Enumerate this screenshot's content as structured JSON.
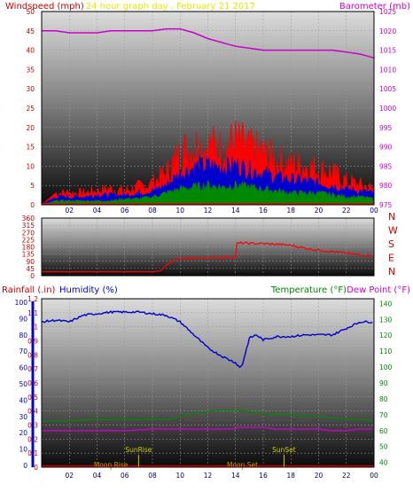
{
  "colors": {
    "wind_axis": "#cc0000",
    "barometer": "#cc00cc",
    "title": "#e6e600",
    "rain": "#cc0000",
    "humidity": "#0000cc",
    "temperature": "#008800",
    "dewpoint": "#cc00cc",
    "wind_gust": "#ff0000",
    "wind_avg": "#0000cc",
    "wind_low": "#008800",
    "moon": "#cc9900",
    "sun": "#cccc00"
  },
  "chart_data": [
    {
      "type": "line",
      "panel": "wind-barometer",
      "title": "24 hour graph day , February 21 2017",
      "ylabel": "Windspeed (mph)",
      "y2label": "Barometer (mb)",
      "ylim": [
        0,
        50
      ],
      "y2lim": [
        975,
        1025
      ],
      "x_ticks": [
        "02",
        "04",
        "06",
        "08",
        "10",
        "12",
        "14",
        "16",
        "18",
        "20",
        "22",
        "00"
      ],
      "y_ticks": [
        "0",
        "5",
        "10",
        "15",
        "20",
        "25",
        "30",
        "35",
        "40",
        "45",
        "50"
      ],
      "y2_ticks": [
        "975",
        "980",
        "985",
        "990",
        "995",
        "1000",
        "1005",
        "1010",
        "1015",
        "1020",
        "1025"
      ],
      "x_range_hours": [
        0,
        24
      ],
      "series": [
        {
          "id": "gust",
          "hours": [
            0,
            1,
            2,
            3,
            4,
            5,
            6,
            7,
            8,
            9,
            10,
            11,
            12,
            13,
            14,
            15,
            16,
            17,
            18,
            19,
            20,
            21,
            22,
            23,
            24
          ],
          "values": [
            0,
            3,
            3,
            3,
            3.5,
            4,
            3.5,
            4.5,
            5.5,
            8,
            13,
            15,
            15,
            14,
            16,
            14,
            13,
            11,
            10,
            10,
            9,
            8,
            6,
            5,
            4
          ]
        },
        {
          "id": "average",
          "hours": [
            0,
            1,
            2,
            3,
            4,
            5,
            6,
            7,
            8,
            9,
            10,
            11,
            12,
            13,
            14,
            15,
            16,
            17,
            18,
            19,
            20,
            21,
            22,
            23,
            24
          ],
          "values": [
            0,
            2,
            2,
            2,
            2.5,
            2.5,
            2.5,
            3,
            3.5,
            5,
            8,
            9.5,
            10,
            9.5,
            10,
            9,
            8,
            7,
            6.5,
            6,
            5.5,
            5,
            4,
            3.5,
            3
          ]
        },
        {
          "id": "low",
          "hours": [
            0,
            1,
            2,
            3,
            4,
            5,
            6,
            7,
            8,
            9,
            10,
            11,
            12,
            13,
            14,
            15,
            16,
            17,
            18,
            19,
            20,
            21,
            22,
            23,
            24
          ],
          "values": [
            0,
            1,
            1,
            1,
            1,
            1,
            1.5,
            1.5,
            2,
            3,
            4,
            4.5,
            5,
            4.5,
            5,
            4.5,
            4,
            3.5,
            3,
            3,
            3,
            2.5,
            2,
            2,
            1.5
          ]
        },
        {
          "id": "barometer",
          "axis": "y2",
          "hours": [
            0,
            1,
            2,
            3,
            4,
            5,
            6,
            7,
            8,
            9,
            10,
            11,
            12,
            13,
            14,
            15,
            16,
            17,
            18,
            19,
            20,
            21,
            22,
            23,
            24
          ],
          "values": [
            1020,
            1020,
            1019.5,
            1019.5,
            1019.5,
            1020,
            1020,
            1020,
            1020,
            1020.5,
            1020.5,
            1019.5,
            1018,
            1017,
            1016,
            1015.5,
            1015,
            1015,
            1015,
            1015,
            1015,
            1015,
            1014.5,
            1014,
            1013
          ]
        }
      ]
    },
    {
      "type": "line",
      "panel": "wind-direction",
      "ylim": [
        0,
        360
      ],
      "y_ticks": [
        "0",
        "45",
        "90",
        "135",
        "180",
        "225",
        "270",
        "315",
        "360"
      ],
      "direction_labels": [
        "N",
        "W",
        "S",
        "E",
        "N"
      ],
      "x_range_hours": [
        0,
        24
      ],
      "series": [
        {
          "id": "direction",
          "hours": [
            0,
            1,
            2,
            3,
            4,
            5,
            6,
            7,
            8,
            8.6,
            9,
            9.6,
            10,
            11,
            12,
            13,
            14,
            14.05,
            14.5,
            15,
            16,
            17,
            18,
            19,
            20,
            21,
            22,
            23,
            24
          ],
          "values": [
            25,
            25,
            25,
            25,
            25,
            25,
            25,
            25,
            25,
            30,
            65,
            100,
            105,
            110,
            112,
            115,
            118,
            200,
            205,
            202,
            200,
            196,
            190,
            172,
            160,
            150,
            140,
            130,
            125
          ]
        }
      ]
    },
    {
      "type": "line",
      "panel": "rain-humidity-temperature",
      "labels": {
        "rain": "Rainfall (.in)",
        "humidity": "Humidity (%)",
        "temperature": "Temperature (°F)",
        "dewpoint": "Dew Point (°F)"
      },
      "rain_ticks": [
        "0",
        "0.1",
        "0.2",
        "0.3",
        "0.4",
        "0.5",
        "0.6",
        "0.7",
        "0.8",
        "0.9",
        "1",
        "1.1",
        "1.2"
      ],
      "humidity_ticks": [
        "0",
        "10",
        "20",
        "30",
        "40",
        "50",
        "60",
        "70",
        "80",
        "90",
        "100"
      ],
      "temp_ticks": [
        "40",
        "50",
        "60",
        "70",
        "80",
        "90",
        "100",
        "110",
        "120",
        "130",
        "140"
      ],
      "x_ticks": [
        "02",
        "04",
        "06",
        "08",
        "10",
        "12",
        "14",
        "16",
        "18",
        "20",
        "22",
        "00"
      ],
      "x_range_hours": [
        0,
        24
      ],
      "events": [
        {
          "label": "Moon Rise",
          "hour": 5.0,
          "row": "low"
        },
        {
          "label": "SunRise",
          "hour": 7.0,
          "row": "high"
        },
        {
          "label": "Moon Set",
          "hour": 14.5,
          "row": "low"
        },
        {
          "label": "SunSet",
          "hour": 17.5,
          "row": "high"
        }
      ],
      "series": [
        {
          "id": "humidity",
          "axis": "humidity",
          "ylim": [
            0,
            100
          ],
          "hours": [
            0,
            1,
            2,
            3,
            4,
            5,
            6,
            7,
            8,
            9,
            10,
            11,
            12,
            13,
            14,
            14.3,
            14.5,
            15,
            15.5,
            16,
            17,
            18,
            19,
            20,
            21,
            22,
            23,
            24
          ],
          "values": [
            88,
            89,
            88,
            92,
            93,
            94,
            94,
            94,
            93,
            92,
            88,
            80,
            72,
            67,
            63,
            60,
            62,
            78,
            80,
            77,
            79,
            79,
            80,
            80,
            80,
            84,
            88,
            88
          ]
        },
        {
          "id": "temperature",
          "axis": "temp",
          "ylim": [
            37,
            143
          ],
          "hours": [
            0,
            2,
            4,
            6,
            8,
            9,
            10,
            11,
            12,
            13,
            14,
            15,
            16,
            17,
            18,
            19,
            20,
            21,
            22,
            23,
            24
          ],
          "values": [
            66,
            66,
            67,
            67,
            67,
            67,
            69,
            71,
            72,
            73,
            73,
            72,
            71,
            70,
            70,
            69,
            69,
            68,
            67,
            67,
            66
          ]
        },
        {
          "id": "dewpoint",
          "axis": "temp",
          "ylim": [
            37,
            143
          ],
          "hours": [
            0,
            2,
            4,
            6,
            8,
            9,
            10,
            11,
            12,
            13,
            14,
            14.1,
            15,
            16,
            17,
            18,
            19,
            20,
            21,
            22,
            23,
            24
          ],
          "values": [
            60,
            60,
            60,
            60,
            61,
            61,
            61,
            61,
            61,
            61,
            61,
            62,
            62,
            62,
            61,
            61,
            61,
            61,
            60,
            60,
            61,
            61
          ]
        },
        {
          "id": "rainfall",
          "axis": "rain",
          "ylim": [
            0,
            1.2
          ],
          "hours": [
            0,
            24
          ],
          "values": [
            0,
            0
          ]
        }
      ]
    }
  ]
}
